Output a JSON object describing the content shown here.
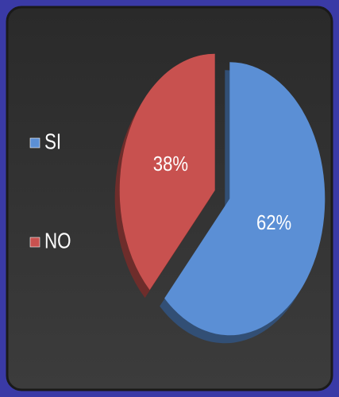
{
  "chart_data": {
    "type": "pie",
    "categories": [
      "SI",
      "NO"
    ],
    "values": [
      62,
      38
    ],
    "value_labels": [
      "62%",
      "38%"
    ],
    "colors": [
      "#5b8fd5",
      "#c8514f"
    ],
    "legend": "left"
  }
}
